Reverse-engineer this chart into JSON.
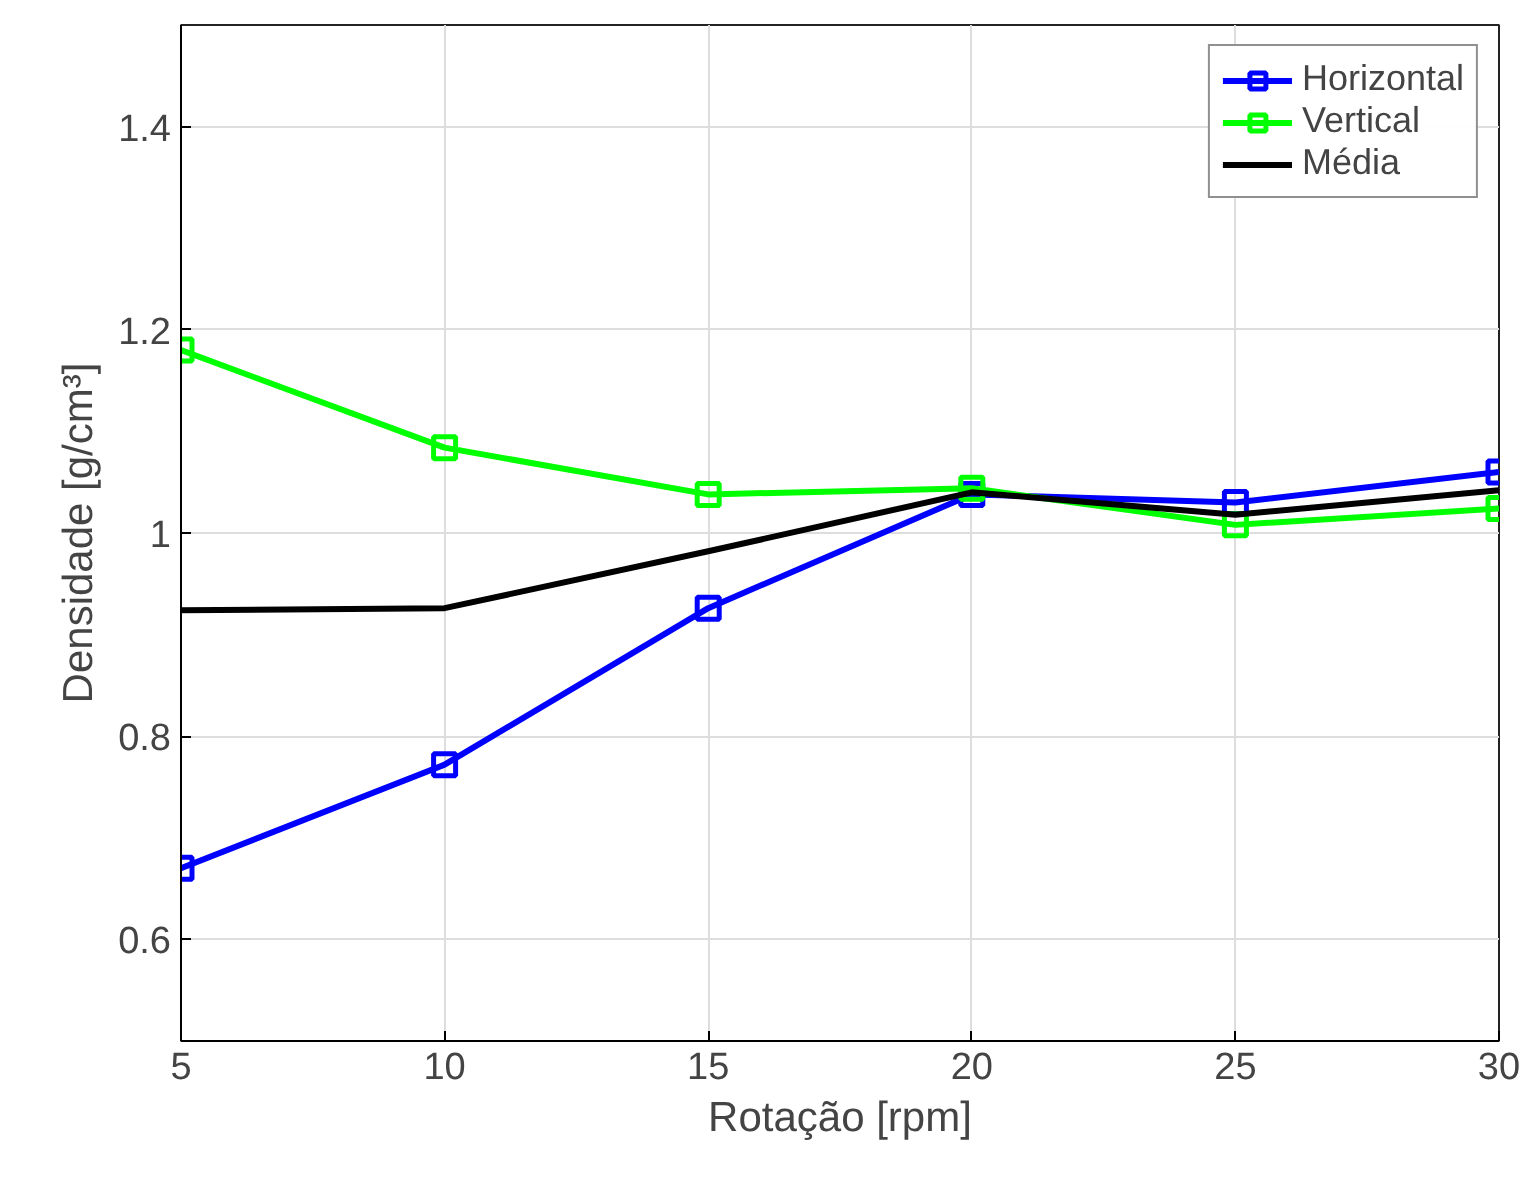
{
  "chart_data": {
    "type": "line",
    "xlabel": "Rotação [rpm]",
    "ylabel": "Densidade [g/cm³]",
    "x": [
      5,
      10,
      15,
      20,
      25,
      30
    ],
    "series": [
      {
        "name": "Horizontal",
        "color": "#0000ff",
        "marker": "square",
        "values": [
          0.67,
          0.772,
          0.926,
          1.038,
          1.03,
          1.06
        ]
      },
      {
        "name": "Vertical",
        "color": "#00ff00",
        "marker": "square",
        "values": [
          1.18,
          1.084,
          1.038,
          1.044,
          1.008,
          1.024
        ]
      },
      {
        "name": "Média",
        "color": "#000000",
        "marker": "none",
        "values": [
          0.924,
          0.926,
          0.982,
          1.04,
          1.018,
          1.042
        ]
      }
    ],
    "xlim": [
      5,
      30
    ],
    "ylim": [
      0.5,
      1.5
    ],
    "xticks": [
      5,
      10,
      15,
      20,
      25,
      30
    ],
    "yticks": [
      0.6,
      0.8,
      1,
      1.2,
      1.4
    ],
    "grid": true,
    "legend": "top right",
    "line_style": "solid"
  }
}
